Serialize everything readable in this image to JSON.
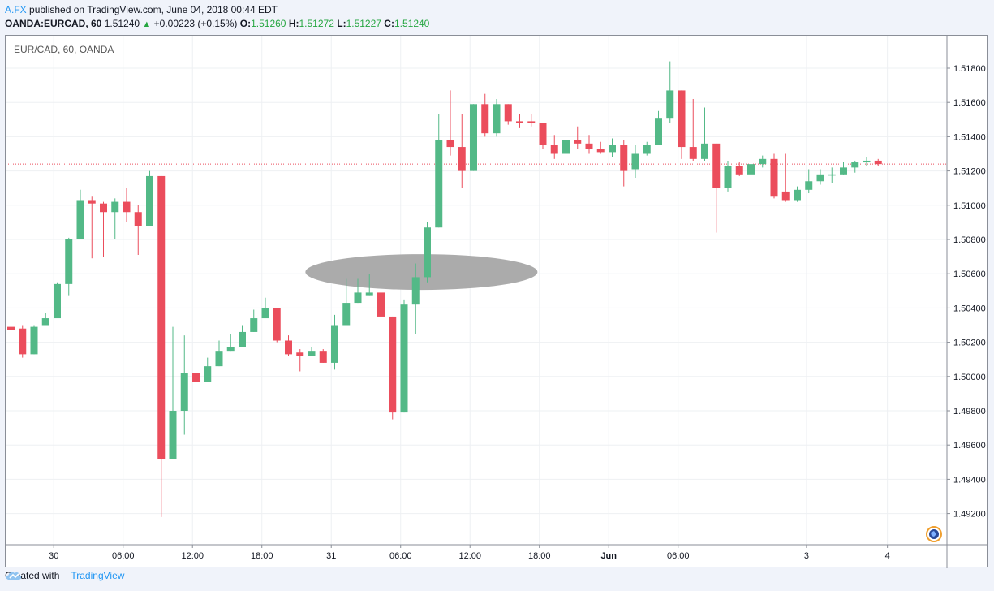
{
  "header": {
    "author": "A.FX",
    "published_text": "published on TradingView.com, June 04, 2018 00:44 EDT"
  },
  "quote": {
    "symbol": "OANDA:EURCAD, 60",
    "last": "1.51240",
    "change": "+0.00223 (+0.15%)",
    "o_label": "O:",
    "o": "1.51260",
    "h_label": "H:",
    "h": "1.51272",
    "l_label": "L:",
    "l": "1.51227",
    "c_label": "C:",
    "c": "1.51240"
  },
  "chart_data": {
    "type": "candlestick",
    "title": "EUR/CAD, 60, OANDA",
    "ylim": [
      1.4908,
      1.5202
    ],
    "y_ticks": [
      "1.51800",
      "1.51600",
      "1.51400",
      "1.51200",
      "1.51000",
      "1.50800",
      "1.50600",
      "1.50400",
      "1.50200",
      "1.50000",
      "1.49800",
      "1.49600",
      "1.49400",
      "1.49200"
    ],
    "x_ticks": [
      "30",
      "06:00",
      "12:00",
      "18:00",
      "31",
      "06:00",
      "12:00",
      "18:00",
      "Jun",
      "06:00",
      "3",
      "4"
    ],
    "current_price_line": 1.5124,
    "colors": {
      "up": "#53b987",
      "down": "#eb4d5c"
    },
    "annotation": {
      "type": "ellipse",
      "center_index": 35.5,
      "center_price": 1.5061,
      "fill": "#a6a6a6"
    },
    "candles": [
      {
        "o": 1.5029,
        "h": 1.5033,
        "l": 1.5025,
        "c": 1.5027
      },
      {
        "o": 1.5028,
        "h": 1.503,
        "l": 1.5011,
        "c": 1.5013
      },
      {
        "o": 1.5013,
        "h": 1.503,
        "l": 1.5013,
        "c": 1.5029
      },
      {
        "o": 1.503,
        "h": 1.5037,
        "l": 1.503,
        "c": 1.5034
      },
      {
        "o": 1.5034,
        "h": 1.5055,
        "l": 1.5034,
        "c": 1.5054
      },
      {
        "o": 1.5054,
        "h": 1.5081,
        "l": 1.5047,
        "c": 1.508
      },
      {
        "o": 1.508,
        "h": 1.5109,
        "l": 1.508,
        "c": 1.5103
      },
      {
        "o": 1.5103,
        "h": 1.5105,
        "l": 1.5069,
        "c": 1.5101
      },
      {
        "o": 1.5101,
        "h": 1.5102,
        "l": 1.507,
        "c": 1.5096
      },
      {
        "o": 1.5096,
        "h": 1.5104,
        "l": 1.508,
        "c": 1.5102
      },
      {
        "o": 1.5102,
        "h": 1.511,
        "l": 1.509,
        "c": 1.5096
      },
      {
        "o": 1.5096,
        "h": 1.51,
        "l": 1.5071,
        "c": 1.5088
      },
      {
        "o": 1.5088,
        "h": 1.512,
        "l": 1.5088,
        "c": 1.5117
      },
      {
        "o": 1.5117,
        "h": 1.5117,
        "l": 1.4918,
        "c": 1.4952
      },
      {
        "o": 1.4952,
        "h": 1.5029,
        "l": 1.4952,
        "c": 1.498
      },
      {
        "o": 1.498,
        "h": 1.5024,
        "l": 1.4966,
        "c": 1.5002
      },
      {
        "o": 1.5002,
        "h": 1.5003,
        "l": 1.498,
        "c": 1.4997
      },
      {
        "o": 1.4997,
        "h": 1.5011,
        "l": 1.4997,
        "c": 1.5006
      },
      {
        "o": 1.5006,
        "h": 1.5021,
        "l": 1.5006,
        "c": 1.5015
      },
      {
        "o": 1.5015,
        "h": 1.5025,
        "l": 1.5015,
        "c": 1.5017
      },
      {
        "o": 1.5017,
        "h": 1.503,
        "l": 1.5017,
        "c": 1.5026
      },
      {
        "o": 1.5026,
        "h": 1.5039,
        "l": 1.5026,
        "c": 1.5034
      },
      {
        "o": 1.5034,
        "h": 1.5046,
        "l": 1.5034,
        "c": 1.504
      },
      {
        "o": 1.504,
        "h": 1.504,
        "l": 1.502,
        "c": 1.5021
      },
      {
        "o": 1.5021,
        "h": 1.5024,
        "l": 1.5012,
        "c": 1.5013
      },
      {
        "o": 1.5014,
        "h": 1.5016,
        "l": 1.5003,
        "c": 1.5012
      },
      {
        "o": 1.5012,
        "h": 1.5017,
        "l": 1.5012,
        "c": 1.5015
      },
      {
        "o": 1.5015,
        "h": 1.5016,
        "l": 1.5008,
        "c": 1.5008
      },
      {
        "o": 1.5008,
        "h": 1.5036,
        "l": 1.5004,
        "c": 1.503
      },
      {
        "o": 1.503,
        "h": 1.5057,
        "l": 1.503,
        "c": 1.5043
      },
      {
        "o": 1.5043,
        "h": 1.5057,
        "l": 1.5043,
        "c": 1.5049
      },
      {
        "o": 1.5047,
        "h": 1.506,
        "l": 1.5047,
        "c": 1.5049
      },
      {
        "o": 1.5049,
        "h": 1.5051,
        "l": 1.5034,
        "c": 1.5035
      },
      {
        "o": 1.5035,
        "h": 1.5035,
        "l": 1.4975,
        "c": 1.4979
      },
      {
        "o": 1.4979,
        "h": 1.5045,
        "l": 1.4979,
        "c": 1.5042
      },
      {
        "o": 1.5042,
        "h": 1.5066,
        "l": 1.5025,
        "c": 1.5058
      },
      {
        "o": 1.5058,
        "h": 1.509,
        "l": 1.5055,
        "c": 1.5087
      },
      {
        "o": 1.5087,
        "h": 1.5153,
        "l": 1.5087,
        "c": 1.5138
      },
      {
        "o": 1.5138,
        "h": 1.5167,
        "l": 1.5129,
        "c": 1.5134
      },
      {
        "o": 1.5134,
        "h": 1.5153,
        "l": 1.511,
        "c": 1.512
      },
      {
        "o": 1.512,
        "h": 1.5159,
        "l": 1.512,
        "c": 1.5159
      },
      {
        "o": 1.5159,
        "h": 1.5165,
        "l": 1.514,
        "c": 1.5142
      },
      {
        "o": 1.5142,
        "h": 1.5162,
        "l": 1.514,
        "c": 1.5159
      },
      {
        "o": 1.5159,
        "h": 1.5159,
        "l": 1.5147,
        "c": 1.5149
      },
      {
        "o": 1.5149,
        "h": 1.5153,
        "l": 1.5145,
        "c": 1.5148
      },
      {
        "o": 1.5149,
        "h": 1.5153,
        "l": 1.5146,
        "c": 1.5148
      },
      {
        "o": 1.5148,
        "h": 1.5148,
        "l": 1.5133,
        "c": 1.5135
      },
      {
        "o": 1.5135,
        "h": 1.5141,
        "l": 1.5127,
        "c": 1.513
      },
      {
        "o": 1.513,
        "h": 1.5141,
        "l": 1.5125,
        "c": 1.5138
      },
      {
        "o": 1.5138,
        "h": 1.5146,
        "l": 1.5133,
        "c": 1.5136
      },
      {
        "o": 1.5136,
        "h": 1.5141,
        "l": 1.513,
        "c": 1.5133
      },
      {
        "o": 1.5133,
        "h": 1.5137,
        "l": 1.513,
        "c": 1.5131
      },
      {
        "o": 1.5131,
        "h": 1.5139,
        "l": 1.5128,
        "c": 1.5135
      },
      {
        "o": 1.5135,
        "h": 1.5138,
        "l": 1.5111,
        "c": 1.512
      },
      {
        "o": 1.5121,
        "h": 1.5135,
        "l": 1.5116,
        "c": 1.513
      },
      {
        "o": 1.513,
        "h": 1.5137,
        "l": 1.5129,
        "c": 1.5135
      },
      {
        "o": 1.5135,
        "h": 1.5155,
        "l": 1.5135,
        "c": 1.5151
      },
      {
        "o": 1.5151,
        "h": 1.5184,
        "l": 1.5148,
        "c": 1.5167
      },
      {
        "o": 1.5167,
        "h": 1.5167,
        "l": 1.5127,
        "c": 1.5134
      },
      {
        "o": 1.5134,
        "h": 1.5162,
        "l": 1.5126,
        "c": 1.5127
      },
      {
        "o": 1.5127,
        "h": 1.5157,
        "l": 1.5126,
        "c": 1.5136
      },
      {
        "o": 1.5136,
        "h": 1.5136,
        "l": 1.5084,
        "c": 1.511
      },
      {
        "o": 1.511,
        "h": 1.5126,
        "l": 1.5108,
        "c": 1.5123
      },
      {
        "o": 1.5123,
        "h": 1.5125,
        "l": 1.5117,
        "c": 1.5118
      },
      {
        "o": 1.5118,
        "h": 1.5128,
        "l": 1.5118,
        "c": 1.5124
      },
      {
        "o": 1.5124,
        "h": 1.5129,
        "l": 1.5122,
        "c": 1.5127
      },
      {
        "o": 1.5127,
        "h": 1.513,
        "l": 1.5104,
        "c": 1.5105
      },
      {
        "o": 1.5108,
        "h": 1.513,
        "l": 1.5102,
        "c": 1.5103
      },
      {
        "o": 1.5103,
        "h": 1.5111,
        "l": 1.5102,
        "c": 1.5109
      },
      {
        "o": 1.5109,
        "h": 1.5121,
        "l": 1.5107,
        "c": 1.5114
      },
      {
        "o": 1.5114,
        "h": 1.5121,
        "l": 1.5112,
        "c": 1.5118
      },
      {
        "o": 1.5118,
        "h": 1.5122,
        "l": 1.5113,
        "c": 1.5118
      },
      {
        "o": 1.5118,
        "h": 1.5125,
        "l": 1.5118,
        "c": 1.5122
      },
      {
        "o": 1.5122,
        "h": 1.5126,
        "l": 1.5119,
        "c": 1.5125
      },
      {
        "o": 1.5125,
        "h": 1.5128,
        "l": 1.5123,
        "c": 1.5126
      },
      {
        "o": 1.5126,
        "h": 1.5127,
        "l": 1.5123,
        "c": 1.5124
      }
    ]
  },
  "footer": {
    "created_with": "Created with",
    "brand": "TradingView"
  }
}
